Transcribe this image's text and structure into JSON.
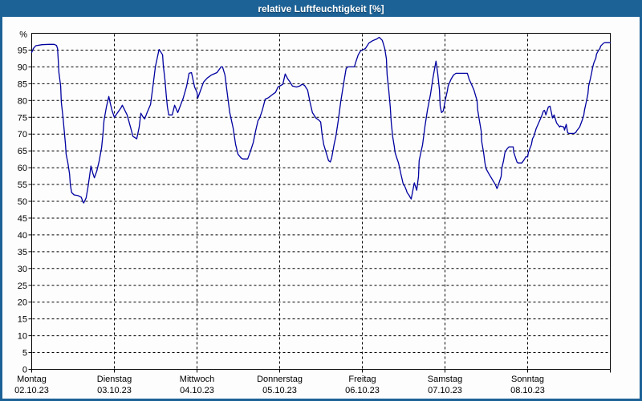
{
  "window": {
    "title": "relative Luftfeuchtigkeit [%]"
  },
  "colors": {
    "frame": "#1d6296",
    "titlebar": "#1d6296",
    "title_text": "#ffffff",
    "plot_background": "#fdfdfd",
    "axis": "#000000",
    "grid": "#000000",
    "line": "#0000a0"
  },
  "chart_data": {
    "type": "line",
    "title": "relative Luftfeuchtigkeit [%]",
    "xlabel": "",
    "ylabel": "%",
    "ylim": [
      0,
      100
    ],
    "ytick_step": 5,
    "ytick_labels": [
      "0",
      "5",
      "10",
      "15",
      "20",
      "25",
      "30",
      "35",
      "40",
      "45",
      "50",
      "55",
      "60",
      "65",
      "70",
      "75",
      "80",
      "85",
      "90",
      "95"
    ],
    "grid": "dashed black; horizontal every 5%, vertical at each day boundary",
    "legend_position": "none",
    "x_range_hours": [
      0,
      168
    ],
    "x_days": [
      {
        "name": "Montag",
        "date": "02.10.23"
      },
      {
        "name": "Dienstag",
        "date": "03.10.23"
      },
      {
        "name": "Mittwoch",
        "date": "04.10.23"
      },
      {
        "name": "Donnerstag",
        "date": "05.10.23"
      },
      {
        "name": "Freitag",
        "date": "06.10.23"
      },
      {
        "name": "Samstag",
        "date": "07.10.23"
      },
      {
        "name": "Sonntag",
        "date": "08.10.23"
      }
    ],
    "series": [
      {
        "name": "relative Luftfeuchtigkeit [%]",
        "color": "#0000a0",
        "points_hours_percent": [
          [
            0,
            94.3
          ],
          [
            0.5,
            95.5
          ],
          [
            1.2,
            96.3
          ],
          [
            3,
            96.6
          ],
          [
            5,
            96.7
          ],
          [
            6.5,
            96.7
          ],
          [
            7.2,
            96.4
          ],
          [
            7.5,
            95.5
          ],
          [
            7.7,
            92.3
          ],
          [
            7.9,
            88.3
          ],
          [
            8.4,
            84.3
          ],
          [
            8.6,
            79.5
          ],
          [
            9.1,
            74.8
          ],
          [
            9.8,
            66.9
          ],
          [
            10,
            64
          ],
          [
            10.5,
            61.4
          ],
          [
            11,
            58.1
          ],
          [
            11.2,
            55
          ],
          [
            11.6,
            52.6
          ],
          [
            12.3,
            51.9
          ],
          [
            13.5,
            51.7
          ],
          [
            14.4,
            51.2
          ],
          [
            14.9,
            49.8
          ],
          [
            15.1,
            49.5
          ],
          [
            15.8,
            51
          ],
          [
            16.3,
            54
          ],
          [
            16.8,
            57.5
          ],
          [
            17.2,
            60.5
          ],
          [
            17.7,
            58.5
          ],
          [
            18.2,
            57
          ],
          [
            18.9,
            59
          ],
          [
            19.6,
            62
          ],
          [
            20.3,
            66
          ],
          [
            20.7,
            70
          ],
          [
            21,
            74
          ],
          [
            21.7,
            78.1
          ],
          [
            22.4,
            81.2
          ],
          [
            22.8,
            79.3
          ],
          [
            23.3,
            77.1
          ],
          [
            24,
            75
          ],
          [
            25.9,
            77.8
          ],
          [
            26.3,
            78.6
          ],
          [
            27.7,
            75.7
          ],
          [
            28.7,
            72
          ],
          [
            29.4,
            69.3
          ],
          [
            30.5,
            68.6
          ],
          [
            31.2,
            72
          ],
          [
            31.7,
            76.2
          ],
          [
            32.4,
            75
          ],
          [
            32.8,
            74.5
          ],
          [
            33.5,
            76.4
          ],
          [
            34.5,
            78.8
          ],
          [
            35.2,
            84.3
          ],
          [
            35.9,
            90
          ],
          [
            36.8,
            94.3
          ],
          [
            37,
            95.2
          ],
          [
            38,
            93.6
          ],
          [
            38.2,
            90.7
          ],
          [
            38.7,
            86
          ],
          [
            39.1,
            81.2
          ],
          [
            39.4,
            78.1
          ],
          [
            39.8,
            75.7
          ],
          [
            40.8,
            75.7
          ],
          [
            41.5,
            78.6
          ],
          [
            42.4,
            76.4
          ],
          [
            43.3,
            78.8
          ],
          [
            44,
            80.7
          ],
          [
            45,
            84.3
          ],
          [
            45.7,
            88.1
          ],
          [
            46.4,
            88.3
          ],
          [
            47.3,
            84
          ],
          [
            48,
            82.4
          ],
          [
            48.2,
            80.7
          ],
          [
            49.9,
            85.5
          ],
          [
            51,
            86.7
          ],
          [
            52.2,
            87.6
          ],
          [
            53.8,
            88.3
          ],
          [
            55,
            90
          ],
          [
            55.4,
            90
          ],
          [
            56.1,
            87.6
          ],
          [
            56.8,
            81.9
          ],
          [
            57.5,
            76.4
          ],
          [
            58.5,
            71.7
          ],
          [
            59.2,
            66.9
          ],
          [
            59.9,
            64
          ],
          [
            60.8,
            62.9
          ],
          [
            61.3,
            62.6
          ],
          [
            62.7,
            62.6
          ],
          [
            63.4,
            64.5
          ],
          [
            64.3,
            67.4
          ],
          [
            65,
            70.9
          ],
          [
            65.7,
            74
          ],
          [
            66.2,
            74.8
          ],
          [
            66.9,
            76.9
          ],
          [
            67.8,
            80.4
          ],
          [
            68.5,
            80.7
          ],
          [
            69.2,
            81.2
          ],
          [
            70.1,
            81.9
          ],
          [
            70.8,
            82.4
          ],
          [
            71.5,
            84
          ],
          [
            72.9,
            84.8
          ],
          [
            73.6,
            87.9
          ],
          [
            74.3,
            86.5
          ],
          [
            75,
            85.5
          ],
          [
            75.7,
            84.3
          ],
          [
            76.9,
            84
          ],
          [
            77.8,
            84.3
          ],
          [
            78.5,
            84.8
          ],
          [
            79.2,
            84.5
          ],
          [
            80.1,
            83.1
          ],
          [
            80.8,
            79.5
          ],
          [
            81.5,
            76.4
          ],
          [
            82.5,
            74.8
          ],
          [
            83.2,
            74.3
          ],
          [
            83.9,
            73.6
          ],
          [
            84.3,
            70
          ],
          [
            84.8,
            66.9
          ],
          [
            85.5,
            64.5
          ],
          [
            86.2,
            62.1
          ],
          [
            86.7,
            61.7
          ],
          [
            87.1,
            62.9
          ],
          [
            87.8,
            66.9
          ],
          [
            88.3,
            69.3
          ],
          [
            89,
            74
          ],
          [
            89.7,
            79.5
          ],
          [
            90.6,
            85.2
          ],
          [
            91.3,
            89.5
          ],
          [
            91.8,
            90
          ],
          [
            93.7,
            90
          ],
          [
            94.1,
            91.4
          ],
          [
            94.8,
            93.6
          ],
          [
            95.5,
            94.8
          ],
          [
            96.4,
            95.2
          ],
          [
            96.9,
            95.5
          ],
          [
            97.9,
            97.1
          ],
          [
            99,
            97.8
          ],
          [
            100.2,
            98.3
          ],
          [
            100.9,
            98.8
          ],
          [
            101.8,
            97.9
          ],
          [
            102.5,
            95.5
          ],
          [
            103,
            92.4
          ],
          [
            103.2,
            87.6
          ],
          [
            103.7,
            82.9
          ],
          [
            104.1,
            78.1
          ],
          [
            104.4,
            73.3
          ],
          [
            104.8,
            69.3
          ],
          [
            105.3,
            66.2
          ],
          [
            105.5,
            64.5
          ],
          [
            106,
            62.9
          ],
          [
            106.5,
            61.4
          ],
          [
            107.2,
            58.1
          ],
          [
            107.9,
            55
          ],
          [
            108.3,
            54.5
          ],
          [
            108.8,
            53.3
          ],
          [
            109,
            52.6
          ],
          [
            109.5,
            51.9
          ],
          [
            110,
            51
          ],
          [
            110.2,
            50.7
          ],
          [
            110.6,
            52.9
          ],
          [
            111.1,
            55.5
          ],
          [
            111.8,
            53.3
          ],
          [
            112.3,
            57.4
          ],
          [
            112.5,
            62.1
          ],
          [
            113.5,
            66.9
          ],
          [
            114.2,
            72.4
          ],
          [
            114.9,
            77.1
          ],
          [
            115.8,
            81.9
          ],
          [
            116.5,
            86.7
          ],
          [
            116.9,
            89
          ],
          [
            117.4,
            91.7
          ],
          [
            117.9,
            87.9
          ],
          [
            118.4,
            83.1
          ],
          [
            118.6,
            78.3
          ],
          [
            119,
            76.4
          ],
          [
            119.5,
            76.9
          ],
          [
            120.2,
            80.7
          ],
          [
            120.7,
            82.9
          ],
          [
            120.9,
            84.3
          ],
          [
            121.8,
            86.4
          ],
          [
            122.5,
            87.6
          ],
          [
            123.2,
            88.1
          ],
          [
            126.5,
            88.1
          ],
          [
            127,
            86.4
          ],
          [
            127.7,
            84.8
          ],
          [
            128.4,
            83.1
          ],
          [
            129.3,
            80
          ],
          [
            129.5,
            77.1
          ],
          [
            130,
            74
          ],
          [
            130.5,
            70.9
          ],
          [
            130.7,
            67.6
          ],
          [
            131.2,
            64.5
          ],
          [
            131.6,
            61.4
          ],
          [
            131.9,
            59.8
          ],
          [
            132.3,
            59
          ],
          [
            132.8,
            58.1
          ],
          [
            133.5,
            56.9
          ],
          [
            134.2,
            55.7
          ],
          [
            134.6,
            55
          ],
          [
            135.1,
            53.8
          ],
          [
            135.3,
            54.3
          ],
          [
            136.3,
            57.4
          ],
          [
            136.5,
            59.8
          ],
          [
            137,
            62.1
          ],
          [
            137.4,
            64.5
          ],
          [
            138.1,
            65.7
          ],
          [
            138.6,
            66.2
          ],
          [
            139.8,
            66.2
          ],
          [
            140,
            64.5
          ],
          [
            140.5,
            62.9
          ],
          [
            140.9,
            61.7
          ],
          [
            141.2,
            61.4
          ],
          [
            142.3,
            61.4
          ],
          [
            142.8,
            62.1
          ],
          [
            143.5,
            63.3
          ],
          [
            144,
            63.2
          ],
          [
            144.2,
            64.5
          ],
          [
            145.1,
            66.9
          ],
          [
            145.4,
            68.6
          ],
          [
            145.8,
            69.3
          ],
          [
            146.5,
            71.7
          ],
          [
            147.5,
            74
          ],
          [
            148.2,
            75.7
          ],
          [
            148.6,
            76.9
          ],
          [
            148.9,
            77.1
          ],
          [
            149.3,
            75.7
          ],
          [
            150,
            78.1
          ],
          [
            150.5,
            78.3
          ],
          [
            151,
            76
          ],
          [
            151.2,
            74.8
          ],
          [
            151.7,
            75.7
          ],
          [
            152.4,
            73.3
          ],
          [
            153.3,
            72.1
          ],
          [
            153.5,
            72.4
          ],
          [
            154.5,
            72.1
          ],
          [
            154.7,
            71.2
          ],
          [
            155.2,
            72.9
          ],
          [
            155.6,
            70.5
          ],
          [
            155.9,
            70.2
          ],
          [
            157.5,
            70.2
          ],
          [
            158,
            70.5
          ],
          [
            158.2,
            70.9
          ],
          [
            159.1,
            72.1
          ],
          [
            159.8,
            74
          ],
          [
            160.3,
            75.7
          ],
          [
            160.5,
            77.1
          ],
          [
            161,
            79.5
          ],
          [
            161.5,
            81.9
          ],
          [
            161.7,
            84.3
          ],
          [
            162.2,
            86.4
          ],
          [
            162.6,
            88.3
          ],
          [
            162.9,
            90
          ],
          [
            163.3,
            91.4
          ],
          [
            163.8,
            92.6
          ],
          [
            164,
            93.8
          ],
          [
            164.5,
            94.8
          ],
          [
            165,
            95.5
          ],
          [
            165.2,
            96.2
          ],
          [
            165.7,
            96.7
          ],
          [
            166.1,
            97.1
          ],
          [
            166.4,
            97.2
          ],
          [
            168,
            97.2
          ]
        ]
      }
    ]
  }
}
